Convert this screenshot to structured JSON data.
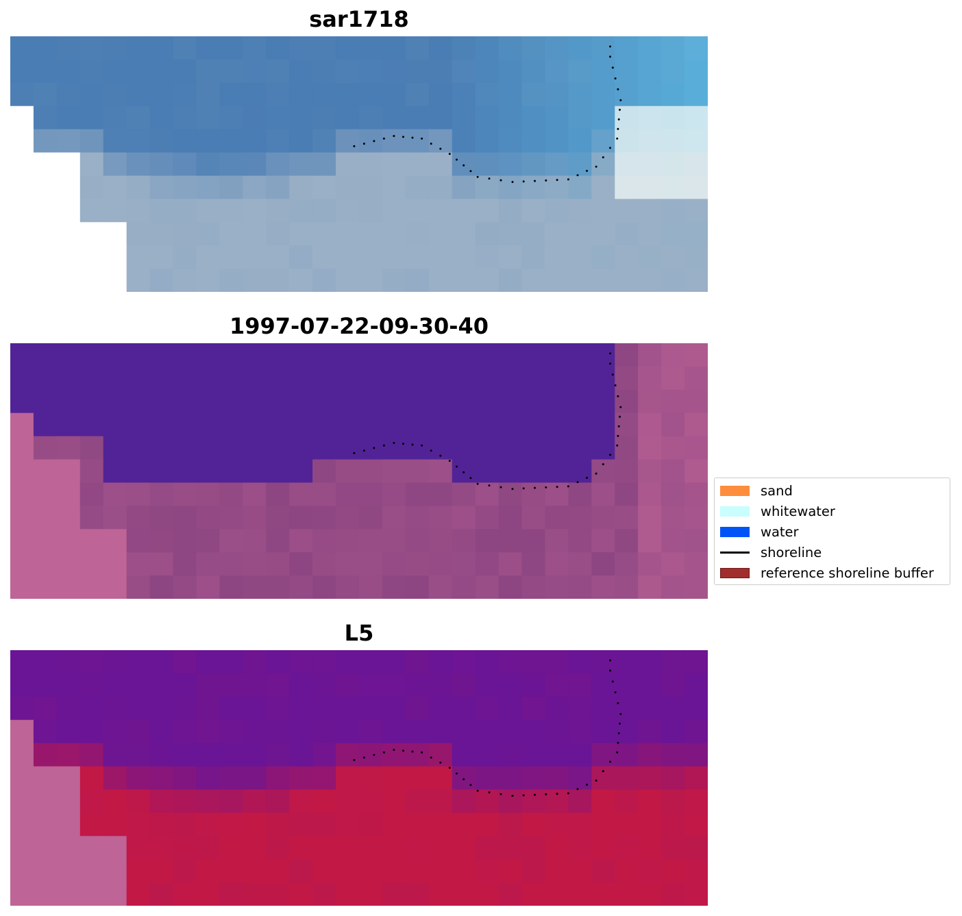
{
  "panels": [
    {
      "title": "sar1718",
      "render": "rgb"
    },
    {
      "title": "1997-07-22-09-30-40",
      "render": "classified"
    },
    {
      "title": "L5",
      "render": "index"
    }
  ],
  "colors": {
    "water_rgb_deep": "#4a7db4",
    "water_rgb_bright": "#5ab2dc",
    "land_rgb": "#9ab0c6",
    "surf_rgb": "#f0f8f6",
    "classified_water": "#522396",
    "classified_land": "#8d4682",
    "nodata_pink": "#be6496",
    "index_water": "#6a1596",
    "index_land": "#c21846",
    "shoreline_dots": "#000000"
  },
  "legend": {
    "items": [
      {
        "label": "sand",
        "color": "#fd8d3c",
        "type": "patch",
        "icon": "orange-patch"
      },
      {
        "label": "whitewater",
        "color": "#c8fefe",
        "type": "patch",
        "icon": "light-cyan-patch"
      },
      {
        "label": "water",
        "color": "#0054f7",
        "type": "patch",
        "icon": "blue-patch"
      },
      {
        "label": "shoreline",
        "color": "#000000",
        "type": "line",
        "icon": "black-line"
      },
      {
        "label": "reference shoreline buffer",
        "color": "#a22d2d",
        "type": "patch",
        "icon": "dark-red-patch"
      }
    ]
  }
}
